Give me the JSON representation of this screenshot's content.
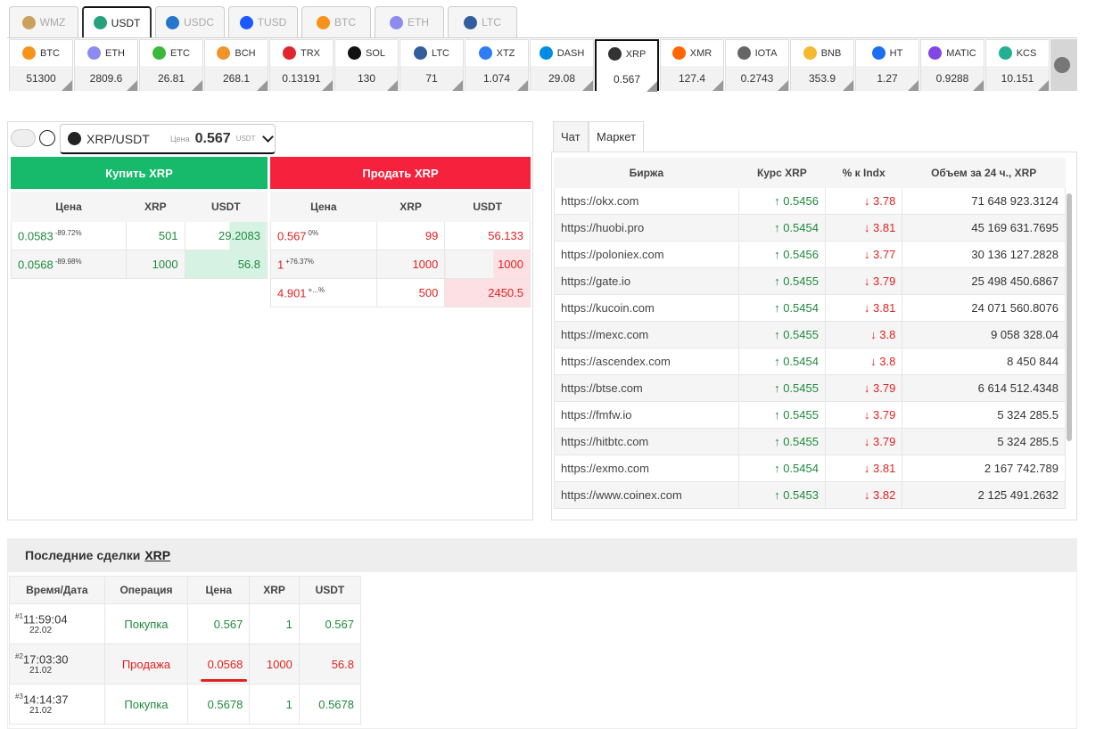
{
  "currency_tabs": [
    "WMZ",
    "USDT",
    "USDC",
    "TUSD",
    "BTC",
    "ETH",
    "LTC"
  ],
  "coins": [
    {
      "name": "BTC",
      "price": "51300"
    },
    {
      "name": "ETH",
      "price": "2809.6"
    },
    {
      "name": "ETC",
      "price": "26.81"
    },
    {
      "name": "BCH",
      "price": "268.1"
    },
    {
      "name": "TRX",
      "price": "0.13191"
    },
    {
      "name": "SOL",
      "price": "130"
    },
    {
      "name": "LTC",
      "price": "71"
    },
    {
      "name": "XTZ",
      "price": "1.074"
    },
    {
      "name": "DASH",
      "price": "29.08"
    },
    {
      "name": "XRP",
      "price": "0.567"
    },
    {
      "name": "XMR",
      "price": "127.4"
    },
    {
      "name": "IOTA",
      "price": "0.2743"
    },
    {
      "name": "BNB",
      "price": "353.9"
    },
    {
      "name": "HT",
      "price": "1.27"
    },
    {
      "name": "MATIC",
      "price": "0.9288"
    },
    {
      "name": "KCS",
      "price": "10.151"
    }
  ],
  "pair": {
    "name": "XRP/USDT",
    "price_label": "Цена",
    "price": "0.567",
    "unit": "USDT"
  },
  "buy": {
    "button": "Купить XRP",
    "headers": [
      "Цена",
      "XRP",
      "USDT"
    ],
    "rows": [
      [
        "0.0583",
        "-89.72%",
        "501",
        "29.2083"
      ],
      [
        "0.0568",
        "-89.98%",
        "1000",
        "56.8"
      ]
    ]
  },
  "sell": {
    "button": "Продать XRP",
    "headers": [
      "Цена",
      "XRP",
      "USDT"
    ],
    "rows": [
      [
        "0.567",
        "0%",
        "99",
        "56.133"
      ],
      [
        "1",
        "+76.37%",
        "1000",
        "1000"
      ],
      [
        "4.901",
        "+...%",
        "500",
        "2450.5"
      ]
    ]
  },
  "side_tabs": [
    "Чат",
    "Маркет"
  ],
  "market": {
    "headers": [
      "Биржа",
      "Курс XRP",
      "% к Indx",
      "Объем за 24 ч., XRP"
    ],
    "rows": [
      [
        "https://okx.com",
        "↑ 0.5456",
        "↓ 3.78",
        "71 648 923.3124"
      ],
      [
        "https://huobi.pro",
        "↑ 0.5454",
        "↓ 3.81",
        "45 169 631.7695"
      ],
      [
        "https://poloniex.com",
        "↑ 0.5456",
        "↓ 3.77",
        "30 136 127.2828"
      ],
      [
        "https://gate.io",
        "↑ 0.5455",
        "↓ 3.79",
        "25 498 450.6867"
      ],
      [
        "https://kucoin.com",
        "↑ 0.5454",
        "↓ 3.81",
        "24 071 560.8076"
      ],
      [
        "https://mexc.com",
        "↑ 0.5455",
        "↓ 3.8",
        "9 058 328.04"
      ],
      [
        "https://ascendex.com",
        "↑ 0.5454",
        "↓ 3.8",
        "8 450 844"
      ],
      [
        "https://btse.com",
        "↑ 0.5455",
        "↓ 3.79",
        "6 614 512.4348"
      ],
      [
        "https://fmfw.io",
        "↑ 0.5455",
        "↓ 3.79",
        "5 324 285.5"
      ],
      [
        "https://hitbtc.com",
        "↑ 0.5455",
        "↓ 3.79",
        "5 324 285.5"
      ],
      [
        "https://exmo.com",
        "↑ 0.5454",
        "↓ 3.81",
        "2 167 742.789"
      ],
      [
        "https://www.coinex.com",
        "↑ 0.5453",
        "↓ 3.82",
        "2 125 491.2632"
      ]
    ]
  },
  "trades": {
    "title": "Последние сделки",
    "title_link": "XRP",
    "headers": [
      "Время/Дата",
      "Операция",
      "Цена",
      "XRP",
      "USDT"
    ],
    "rows": [
      {
        "id": "#1",
        "time": "11:59:04",
        "date": "22.02",
        "op": "Покупка",
        "price": "0.567",
        "amount": "1",
        "total": "0.567"
      },
      {
        "id": "#2",
        "time": "17:03:30",
        "date": "21.02",
        "op": "Продажа",
        "price": "0.0568",
        "amount": "1000",
        "total": "56.8"
      },
      {
        "id": "#3",
        "time": "14:14:37",
        "date": "21.02",
        "op": "Покупка",
        "price": "0.5678",
        "amount": "1",
        "total": "0.5678"
      }
    ]
  }
}
